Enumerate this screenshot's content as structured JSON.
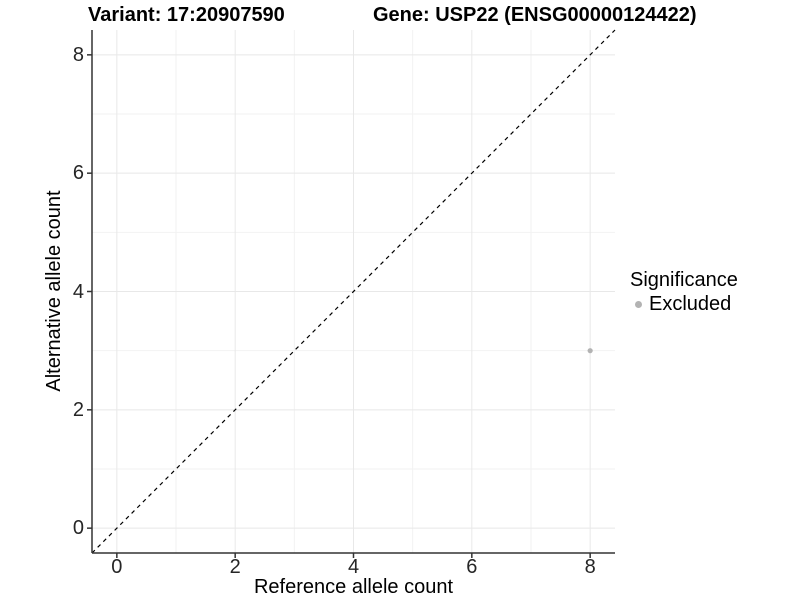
{
  "chart_data": {
    "type": "scatter",
    "titles": [
      "Variant: 17:20907590",
      "Gene: USP22 (ENSG00000124422)"
    ],
    "xlabel": "Reference allele count",
    "ylabel": "Alternative allele count",
    "xlim": [
      -0.42,
      8.42
    ],
    "ylim": [
      -0.42,
      8.42
    ],
    "xticks": [
      0,
      2,
      4,
      6,
      8
    ],
    "yticks": [
      0,
      2,
      4,
      6,
      8
    ],
    "minor_gridlines": [
      1,
      3,
      5,
      7
    ],
    "grid": "major and minor, light gray on white",
    "identity_line": {
      "style": "dashed",
      "color": "#000000",
      "from": [
        -0.42,
        -0.42
      ],
      "to": [
        8.42,
        8.42
      ]
    },
    "series": [
      {
        "name": "Excluded",
        "color": "#b3b3b3",
        "points": [
          [
            8,
            3
          ]
        ]
      }
    ],
    "legend": {
      "title": "Significance",
      "position": "right",
      "entries": [
        {
          "label": "Excluded",
          "color": "#b3b3b3",
          "marker": "circle"
        }
      ]
    }
  },
  "colors": {
    "background": "#ffffff",
    "grid_major": "#e8e8e8",
    "grid_minor": "#f2f2f2",
    "axis": "#333333",
    "tick_text": "#262626",
    "title_text": "#000000",
    "point": "#b3b3b3"
  }
}
